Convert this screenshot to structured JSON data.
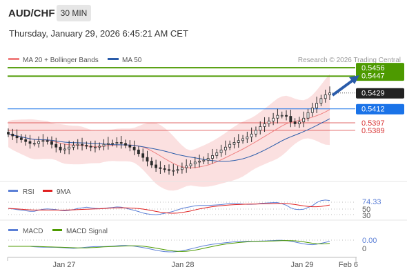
{
  "header": {
    "pair": "AUD/CHF",
    "timeframe": "30 MIN",
    "datetime": "Thursday, January 29, 2026 6:45:21 AM CET"
  },
  "legend": {
    "ma20": "MA 20 + Bollinger Bands",
    "ma50": "MA 50",
    "copyright": "Research © 2026 Trading Central",
    "ma20_color": "#f08080",
    "ma50_color": "#2a5caa"
  },
  "price_levels": [
    {
      "value": "0.5456",
      "kind": "resistance",
      "color": "#4d9a00"
    },
    {
      "value": "0.5447",
      "kind": "resistance",
      "color": "#4d9a00"
    },
    {
      "value": "0.5429",
      "kind": "last",
      "color": "#222222"
    },
    {
      "value": "0.5412",
      "kind": "pivot",
      "color": "#1a73e8"
    },
    {
      "value": "0.5397",
      "kind": "support",
      "color": "#d93636"
    },
    {
      "value": "0.5389",
      "kind": "support",
      "color": "#d93636"
    }
  ],
  "rsi_panel": {
    "label": "RSI",
    "ma_label": "9MA",
    "value": "74.33",
    "levels": [
      "50",
      "30"
    ],
    "rsi_color": "#5b7fd6",
    "ma_color": "#e02020"
  },
  "macd_panel": {
    "label": "MACD",
    "signal_label": "MACD Signal",
    "value": "0.00",
    "level": "0",
    "macd_color": "#5b7fd6",
    "signal_color": "#4d9a00"
  },
  "x_axis": {
    "ticks": [
      "Jan 27",
      "Jan 28",
      "Jan 29",
      "Feb 6"
    ]
  },
  "chart_data": {
    "type": "candlestick",
    "title": "AUD/CHF 30 MIN",
    "ylim": [
      0.5335,
      0.5462
    ],
    "close_approx": [
      0.5385,
      0.5383,
      0.5381,
      0.5379,
      0.5377,
      0.5375,
      0.5375,
      0.5377,
      0.5378,
      0.5377,
      0.5374,
      0.5371,
      0.5368,
      0.5369,
      0.5371,
      0.5373,
      0.5374,
      0.5373,
      0.5372,
      0.5371,
      0.5371,
      0.5372,
      0.5374,
      0.5375,
      0.5375,
      0.5376,
      0.5375,
      0.5373,
      0.5371,
      0.5368,
      0.5364,
      0.536,
      0.5356,
      0.5352,
      0.5349,
      0.5348,
      0.5347,
      0.5346,
      0.5346,
      0.5347,
      0.5349,
      0.5351,
      0.5353,
      0.5355,
      0.5356,
      0.5357,
      0.5359,
      0.5362,
      0.5365,
      0.5368,
      0.5371,
      0.5374,
      0.5376,
      0.5378,
      0.538,
      0.5382,
      0.5385,
      0.5389,
      0.5393,
      0.5396,
      0.5399,
      0.5402,
      0.5405,
      0.5405,
      0.5404,
      0.5398,
      0.5396,
      0.5398,
      0.5402,
      0.5408,
      0.5413,
      0.5418,
      0.5423,
      0.5427,
      0.5429
    ],
    "overlays": [
      "MA 20",
      "Bollinger Bands",
      "MA 50"
    ],
    "levels": [
      0.5456,
      0.5447,
      0.5429,
      0.5412,
      0.5397,
      0.5389
    ],
    "rsi_last": 74.33,
    "macd_last": 0.0
  }
}
